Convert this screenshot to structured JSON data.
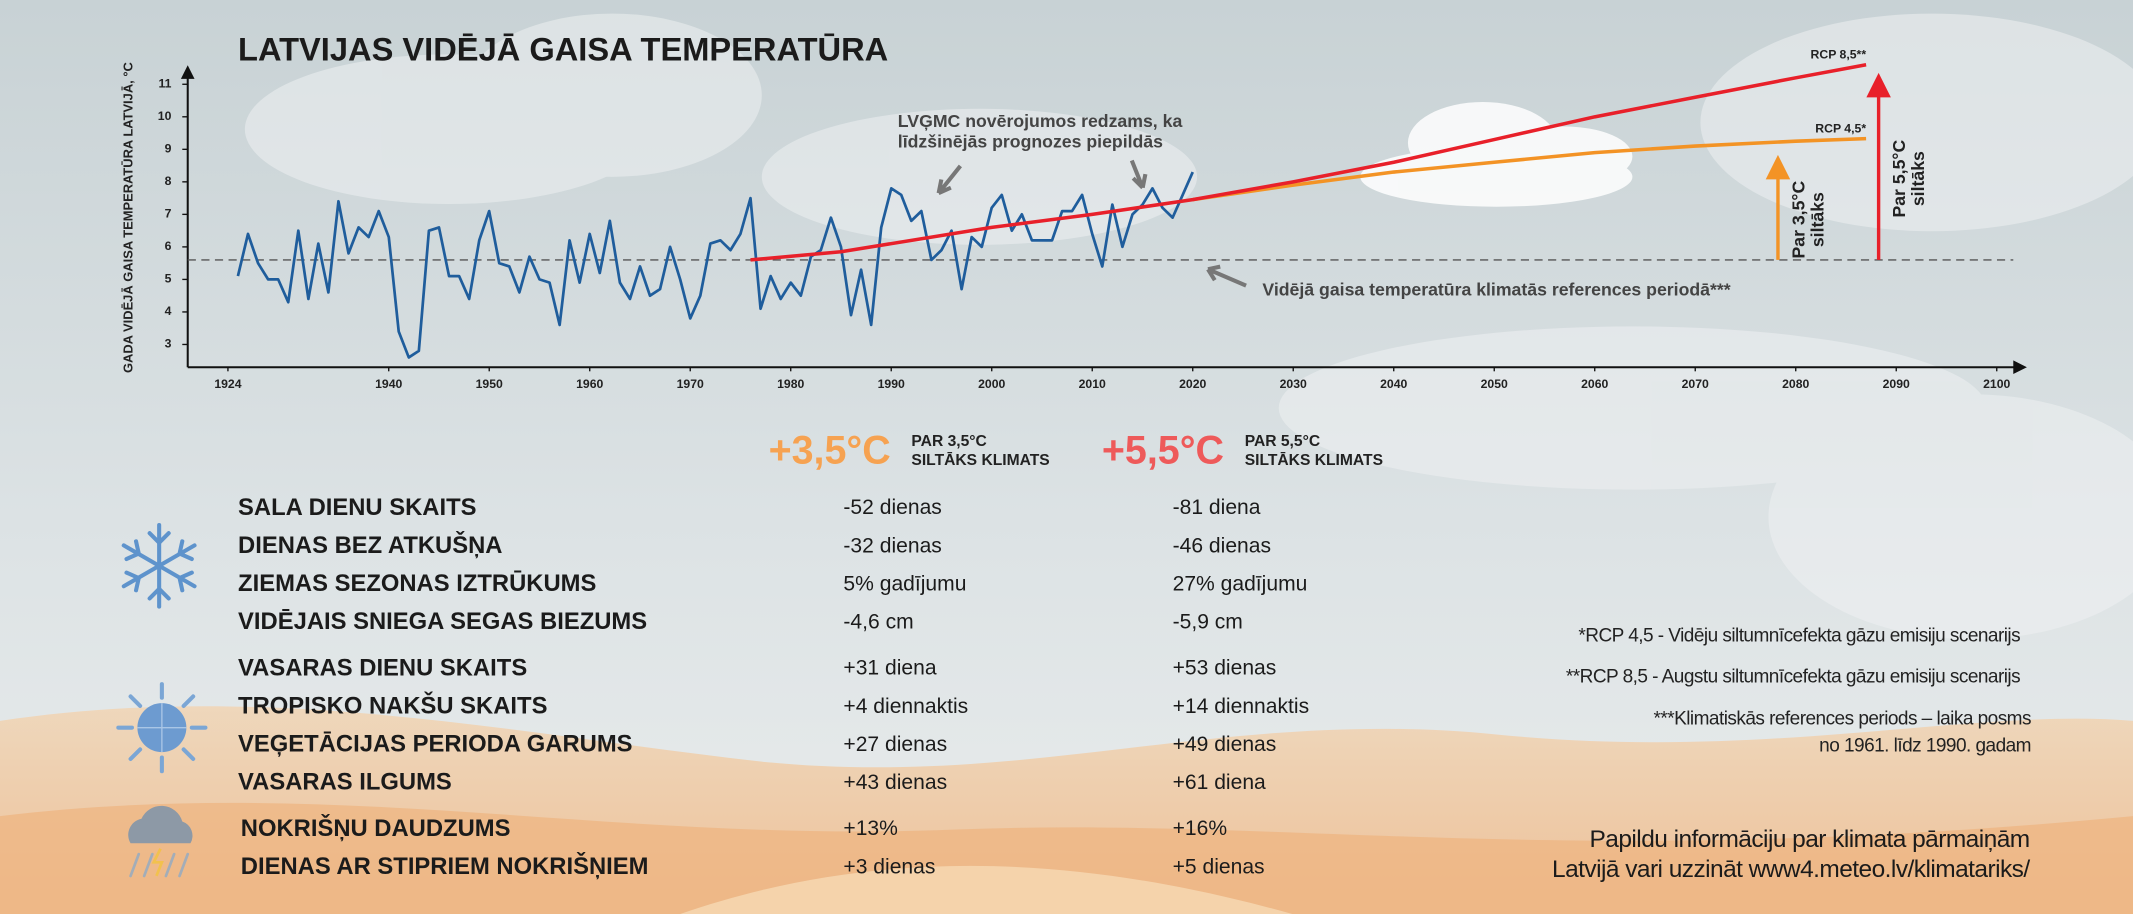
{
  "chart_data": {
    "type": "line",
    "title": "LATVIJAS VIDĒJĀ GAISA TEMPERATŪRA",
    "y_label": "GADA VIDĒJĀ GAISA TEMPERATŪRA LATVIJĀ, °C",
    "xlim": [
      1920,
      2103
    ],
    "xticks": [
      1924,
      1940,
      1950,
      1960,
      1970,
      1980,
      1990,
      2000,
      2010,
      2020,
      2030,
      2040,
      2050,
      2060,
      2070,
      2080,
      2090,
      2100
    ],
    "ylim": [
      2.3,
      11.5
    ],
    "yticks": [
      3,
      4,
      5,
      6,
      7,
      8,
      9,
      10,
      11
    ],
    "series": [
      {
        "color": "#1f5d9c",
        "x": [
          1925,
          1926,
          1927,
          1928,
          1929,
          1930,
          1931,
          1932,
          1933,
          1934,
          1935,
          1936,
          1937,
          1938,
          1939,
          1940,
          1941,
          1942,
          1943,
          1944,
          1945,
          1946,
          1947,
          1948,
          1949,
          1950,
          1951,
          1952,
          1953,
          1954,
          1955,
          1956,
          1957,
          1958,
          1959,
          1960,
          1961,
          1962,
          1963,
          1964,
          1965,
          1966,
          1967,
          1968,
          1969,
          1970,
          1971,
          1972,
          1973,
          1974,
          1975,
          1976,
          1977,
          1978,
          1979,
          1980,
          1981,
          1982,
          1983,
          1984,
          1985,
          1986,
          1987,
          1988,
          1989,
          1990,
          1991,
          1992,
          1993,
          1994,
          1995,
          1996,
          1997,
          1998,
          1999,
          2000,
          2001,
          2002,
          2003,
          2004,
          2005,
          2006,
          2007,
          2008,
          2009,
          2010,
          2011,
          2012,
          2013,
          2014,
          2015,
          2016,
          2017,
          2018,
          2019,
          2020
        ],
        "values": [
          5.1,
          6.4,
          5.5,
          5.0,
          5.0,
          4.3,
          6.5,
          4.4,
          6.1,
          4.6,
          7.4,
          5.8,
          6.6,
          6.3,
          7.1,
          6.3,
          3.4,
          2.6,
          2.8,
          6.5,
          6.6,
          5.1,
          5.1,
          4.4,
          6.2,
          7.1,
          5.5,
          5.4,
          4.6,
          5.7,
          5.0,
          4.9,
          3.6,
          6.2,
          4.9,
          6.4,
          5.2,
          6.8,
          4.9,
          4.4,
          5.4,
          4.5,
          4.7,
          6.0,
          5.0,
          3.8,
          4.5,
          6.1,
          6.2,
          5.9,
          6.4,
          7.5,
          4.1,
          5.1,
          4.4,
          4.9,
          4.5,
          5.7,
          5.9,
          6.9,
          6.0,
          3.9,
          5.3,
          3.6,
          6.6,
          7.8,
          7.6,
          6.8,
          7.1,
          5.6,
          5.9,
          6.5,
          4.7,
          6.3,
          6.0,
          7.2,
          7.6,
          6.5,
          7.0,
          6.2,
          6.2,
          6.2,
          7.1,
          7.1,
          7.6,
          6.4,
          5.4,
          7.3,
          6.0,
          7.0,
          7.3,
          7.8,
          7.2,
          6.9,
          7.6,
          8.3
        ]
      },
      {
        "name": "RCP 8,5**",
        "color": "#e8202a",
        "x": [
          1976,
          1985,
          2000,
          2010,
          2020,
          2030,
          2040,
          2050,
          2060,
          2070,
          2080,
          2087
        ],
        "values": [
          5.6,
          5.85,
          6.6,
          7.0,
          7.45,
          8.0,
          8.6,
          9.3,
          10.0,
          10.6,
          11.2,
          11.6
        ]
      },
      {
        "name": "RCP 4,5*",
        "color": "#f39325",
        "x": [
          2020,
          2030,
          2040,
          2050,
          2060,
          2070,
          2080,
          2087
        ],
        "values": [
          7.45,
          7.9,
          8.3,
          8.6,
          8.9,
          9.1,
          9.25,
          9.33
        ]
      }
    ],
    "reference_value": 5.6,
    "reference_label": "Vidējā gaisa temperatūra klimatās references periodā***",
    "observation_note": [
      "LVĢMC novērojumos redzams, ka",
      "līdzšinējās prognozes piepildās"
    ],
    "warming_arrows": [
      {
        "label": [
          "Par 3,5°C",
          "siltāks"
        ],
        "color": "#f39325"
      },
      {
        "label": [
          "Par 5,5°C",
          "siltāks"
        ],
        "color": "#e8202a"
      }
    ]
  },
  "scenarios": [
    {
      "value": "+3,5°C",
      "label": [
        "PAR 3,5°C",
        "SILTĀKS KLIMATS"
      ],
      "color": "#f6a251"
    },
    {
      "value": "+5,5°C",
      "label": [
        "PAR 5,5°C",
        "SILTĀKS KLIMATS"
      ],
      "color": "#ee5a5a"
    }
  ],
  "table": {
    "groups": [
      {
        "rows": [
          [
            "SALA DIENU SKAITS",
            "-52 dienas",
            "-81 diena"
          ],
          [
            "DIENAS BEZ ATKUŠŅA",
            "-32 dienas",
            "-46 dienas"
          ],
          [
            "ZIEMAS SEZONAS IZTRŪKUMS",
            "5% gadījumu",
            "27% gadījumu"
          ],
          [
            "VIDĒJAIS SNIEGA SEGAS BIEZUMS",
            "-4,6 cm",
            "-5,9 cm"
          ]
        ]
      },
      {
        "rows": [
          [
            "VASARAS DIENU SKAITS",
            "+31 diena",
            "+53 dienas"
          ],
          [
            "TROPISKO NAKŠU SKAITS",
            "+4 diennaktis",
            "+14 diennaktis"
          ],
          [
            "VEĢETĀCIJAS PERIODA GARUMS",
            "+27 dienas",
            "+49 dienas"
          ],
          [
            "VASARAS ILGUMS",
            "+43 dienas",
            "+61 diena"
          ]
        ]
      },
      {
        "rows": [
          [
            "NOKRIŠŅU DAUDZUMS",
            "+13%",
            "+16%"
          ],
          [
            "DIENAS AR STIPRIEM NOKRIŠŅIEM",
            "+3 dienas",
            "+5 dienas"
          ]
        ]
      }
    ]
  },
  "footnotes": [
    "*RCP 4,5 - Vidēju siltumnīcefekta gāzu emisiju scenarijs",
    "**RCP 8,5 - Augstu siltumnīcefekta gāzu emisiju scenarijs",
    "***Klimatiskās references periods – laika posms",
    "no 1961. līdz 1990. gadam"
  ],
  "info": [
    "Papildu informāciju par klimata pārmaiņām",
    "Latvijā vari uzzināt www4.meteo.lv/klimatariks/"
  ]
}
